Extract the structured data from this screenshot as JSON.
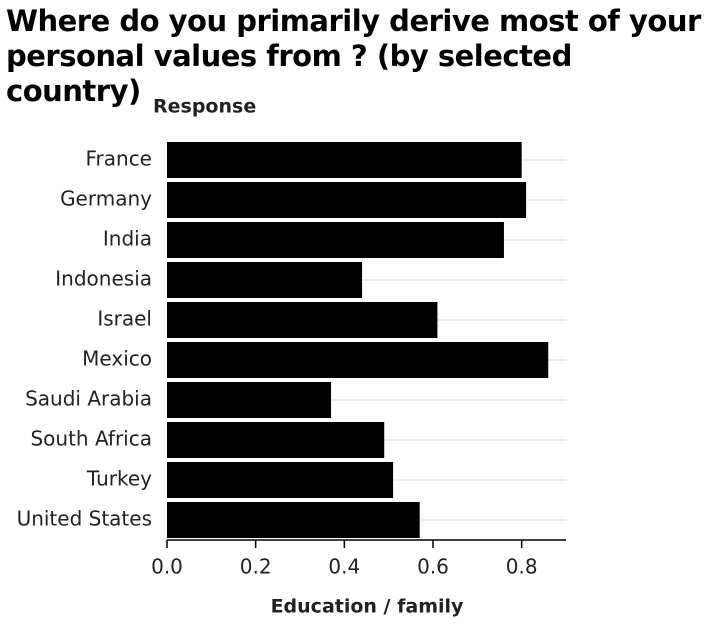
{
  "chart_data": {
    "type": "barh",
    "title": "Where do you primarily derive most of your personal values from ? (by selected country)",
    "y_label": "Response",
    "x_label": "Education / family",
    "categories": [
      "France",
      "Germany",
      "India",
      "Indonesia",
      "Israel",
      "Mexico",
      "Saudi Arabia",
      "South Africa",
      "Turkey",
      "United States"
    ],
    "values": [
      0.8,
      0.81,
      0.76,
      0.44,
      0.61,
      0.86,
      0.37,
      0.49,
      0.51,
      0.57
    ],
    "color": "#000000",
    "xlim": [
      0,
      0.9
    ],
    "xticks": [
      {
        "value": 0,
        "label": "0.0"
      },
      0.2,
      0.4,
      0.6,
      0.8
    ],
    "grid": true
  }
}
